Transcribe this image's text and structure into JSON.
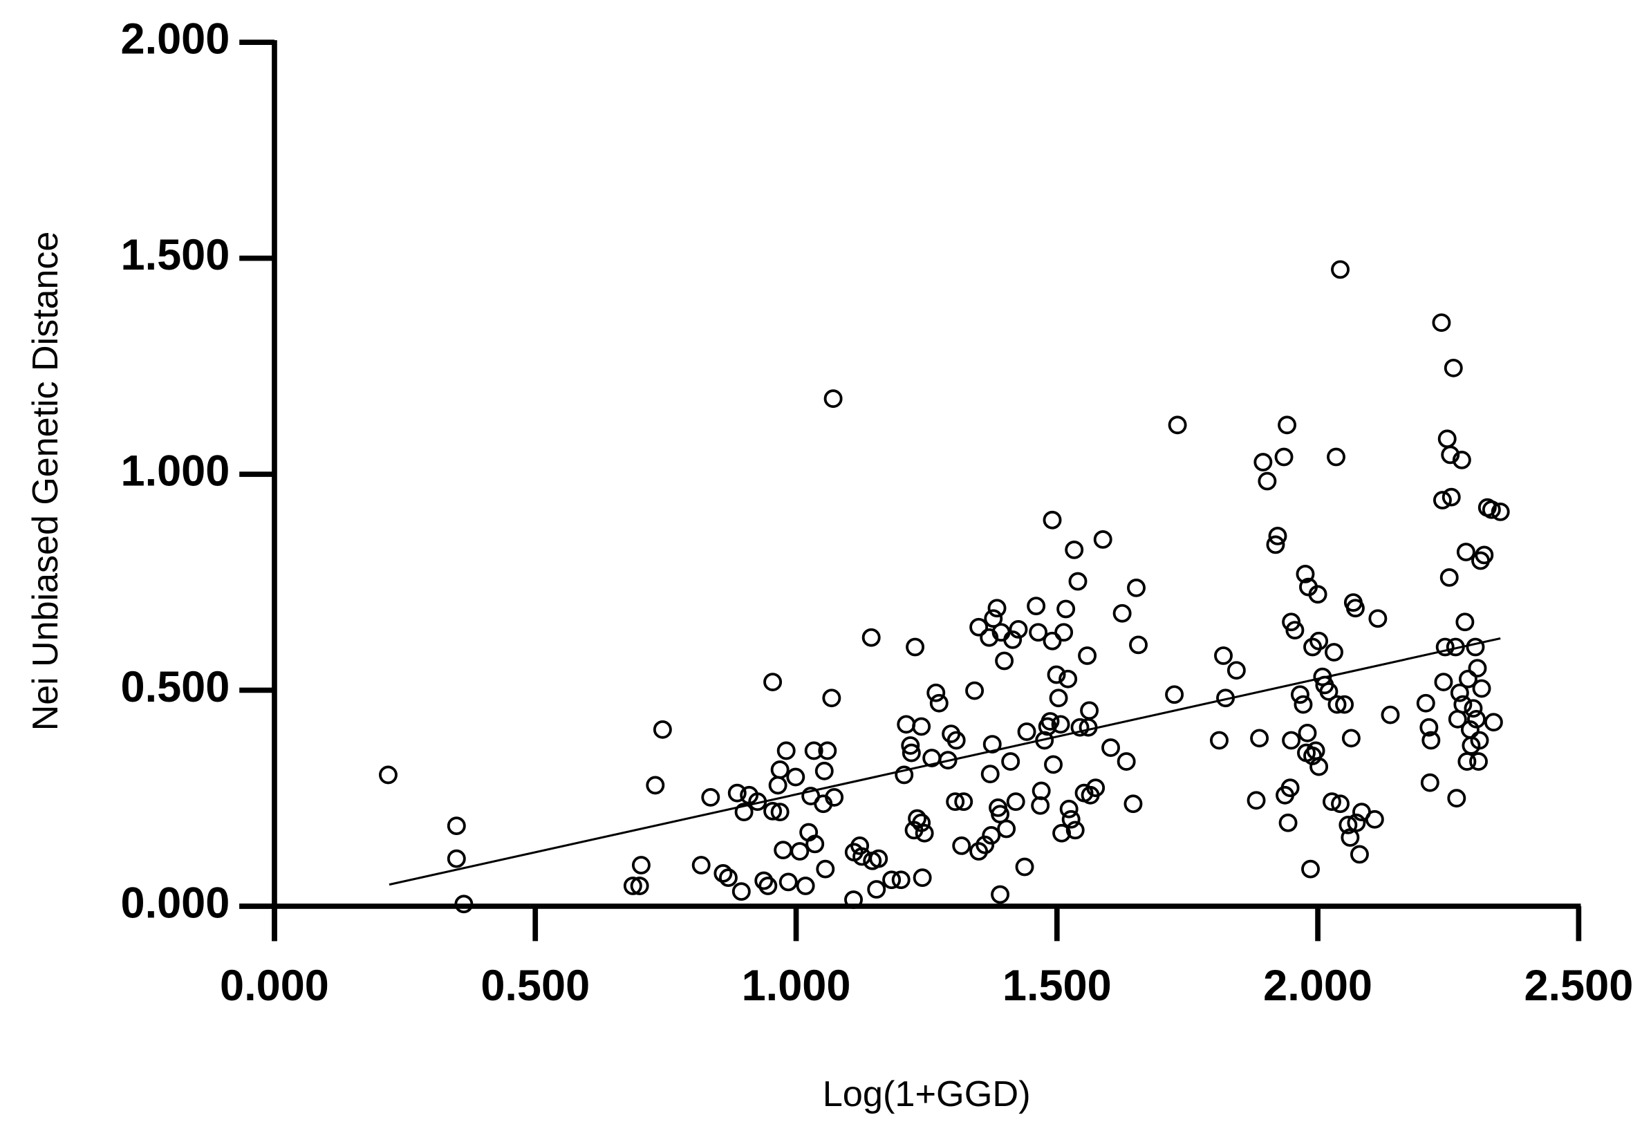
{
  "chart_data": {
    "type": "scatter",
    "x_label": "Log(1+GGD)",
    "y_label": "Nei Unbiased Genetic Distance",
    "xlim": [
      0,
      2.5
    ],
    "ylim": [
      0,
      2
    ],
    "xticks": [
      {
        "value": 0,
        "label": "0.000"
      },
      {
        "value": 0.5,
        "label": "0.500"
      },
      {
        "value": 1,
        "label": "1.000"
      },
      {
        "value": 1.5,
        "label": "1.500"
      },
      {
        "value": 2,
        "label": "2.000"
      },
      {
        "value": 2.5,
        "label": "2.500"
      }
    ],
    "yticks": [
      {
        "value": 0,
        "label": "0.000"
      },
      {
        "value": 0.5,
        "label": "0.500"
      },
      {
        "value": 1,
        "label": "1.000"
      },
      {
        "value": 1.5,
        "label": "1.500"
      },
      {
        "value": 2,
        "label": "2.000"
      }
    ],
    "color": "#000000",
    "x": [
      0.218,
      0.349,
      0.349,
      0.363,
      0.687,
      0.7,
      0.703,
      0.744,
      0.73,
      0.818,
      0.836,
      0.86,
      0.87,
      0.895,
      0.887,
      0.9,
      0.91,
      0.926,
      0.938,
      0.946,
      0.955,
      0.955,
      0.965,
      0.969,
      0.969,
      0.975,
      0.981,
      0.985,
      0.999,
      1.007,
      1.018,
      1.028,
      1.024,
      1.034,
      1.036,
      1.056,
      1.06,
      1.054,
      1.052,
      1.068,
      1.073,
      1.071,
      1.11,
      1.111,
      1.122,
      1.126,
      1.144,
      1.146,
      1.154,
      1.158,
      1.183,
      1.201,
      1.207,
      1.211,
      1.219,
      1.221,
      1.228,
      1.232,
      1.226,
      1.24,
      1.242,
      1.24,
      1.246,
      1.26,
      1.268,
      1.274,
      1.291,
      1.297,
      1.307,
      1.305,
      1.321,
      1.317,
      1.342,
      1.35,
      1.35,
      1.362,
      1.37,
      1.372,
      1.374,
      1.376,
      1.378,
      1.385,
      1.387,
      1.391,
      1.391,
      1.393,
      1.399,
      1.403,
      1.411,
      1.415,
      1.426,
      1.421,
      1.438,
      1.442,
      1.46,
      1.464,
      1.468,
      1.47,
      1.476,
      1.482,
      1.487,
      1.491,
      1.491,
      1.493,
      1.499,
      1.503,
      1.507,
      1.509,
      1.513,
      1.517,
      1.521,
      1.523,
      1.527,
      1.533,
      1.535,
      1.54,
      1.544,
      1.552,
      1.558,
      1.56,
      1.562,
      1.564,
      1.574,
      1.588,
      1.603,
      1.625,
      1.633,
      1.646,
      1.652,
      1.656,
      1.725,
      1.731,
      1.811,
      1.819,
      1.823,
      1.844,
      1.882,
      1.888,
      1.895,
      1.903,
      1.919,
      1.923,
      1.935,
      1.941,
      1.937,
      1.943,
      1.947,
      1.949,
      1.949,
      1.956,
      1.966,
      1.972,
      1.976,
      1.978,
      1.98,
      1.982,
      1.986,
      1.99,
      1.99,
      1.996,
      2.0,
      2.002,
      2.002,
      2.009,
      2.013,
      2.021,
      2.027,
      2.031,
      2.035,
      2.037,
      2.043,
      2.043,
      2.051,
      2.058,
      2.062,
      2.064,
      2.068,
      2.072,
      2.074,
      2.08,
      2.084,
      2.109,
      2.115,
      2.139,
      2.207,
      2.213,
      2.215,
      2.217,
      2.237,
      2.239,
      2.241,
      2.244,
      2.248,
      2.252,
      2.256,
      2.26,
      2.264,
      2.266,
      2.268,
      2.272,
      2.276,
      2.278,
      2.282,
      2.284,
      2.286,
      2.288,
      2.292,
      2.294,
      2.298,
      2.302,
      2.304,
      2.306,
      2.308,
      2.31,
      2.312,
      2.314,
      2.254,
      2.319,
      2.325,
      2.333,
      2.337,
      2.35
    ],
    "values": [
      0.304,
      0.186,
      0.11,
      0.005,
      0.047,
      0.047,
      0.095,
      0.409,
      0.28,
      0.095,
      0.252,
      0.076,
      0.066,
      0.034,
      0.262,
      0.218,
      0.257,
      0.242,
      0.059,
      0.047,
      0.519,
      0.22,
      0.28,
      0.218,
      0.316,
      0.13,
      0.36,
      0.056,
      0.299,
      0.127,
      0.047,
      0.255,
      0.171,
      0.36,
      0.144,
      0.086,
      0.36,
      0.313,
      0.237,
      0.482,
      0.252,
      1.175,
      0.015,
      0.125,
      0.14,
      0.115,
      0.622,
      0.105,
      0.039,
      0.11,
      0.061,
      0.061,
      0.304,
      0.421,
      0.372,
      0.355,
      0.6,
      0.203,
      0.176,
      0.416,
      0.066,
      0.193,
      0.169,
      0.343,
      0.494,
      0.47,
      0.338,
      0.399,
      0.384,
      0.242,
      0.242,
      0.14,
      0.499,
      0.646,
      0.127,
      0.142,
      0.622,
      0.306,
      0.164,
      0.375,
      0.666,
      0.69,
      0.228,
      0.213,
      0.027,
      0.634,
      0.568,
      0.179,
      0.335,
      0.617,
      0.641,
      0.242,
      0.091,
      0.404,
      0.695,
      0.634,
      0.233,
      0.267,
      0.384,
      0.416,
      0.428,
      0.894,
      0.614,
      0.328,
      0.536,
      0.482,
      0.421,
      0.169,
      0.634,
      0.688,
      0.526,
      0.225,
      0.201,
      0.825,
      0.176,
      0.752,
      0.414,
      0.262,
      0.58,
      0.414,
      0.453,
      0.257,
      0.274,
      0.849,
      0.367,
      0.678,
      0.335,
      0.237,
      0.737,
      0.605,
      0.49,
      1.114,
      0.384,
      0.58,
      0.482,
      0.546,
      0.245,
      0.389,
      1.028,
      0.984,
      0.837,
      0.857,
      1.04,
      1.114,
      0.257,
      0.193,
      0.274,
      0.384,
      0.658,
      0.639,
      0.49,
      0.467,
      0.769,
      0.355,
      0.401,
      0.739,
      0.086,
      0.6,
      0.348,
      0.36,
      0.722,
      0.614,
      0.323,
      0.531,
      0.512,
      0.497,
      0.242,
      0.588,
      1.04,
      0.467,
      1.474,
      0.237,
      0.467,
      0.188,
      0.159,
      0.389,
      0.703,
      0.69,
      0.193,
      0.12,
      0.218,
      0.201,
      0.666,
      0.443,
      0.47,
      0.414,
      0.286,
      0.384,
      1.351,
      0.94,
      0.519,
      0.6,
      1.082,
      0.761,
      0.947,
      1.246,
      0.6,
      0.25,
      0.433,
      0.494,
      1.033,
      0.467,
      0.658,
      0.82,
      0.335,
      0.526,
      0.409,
      0.372,
      0.458,
      0.6,
      0.433,
      0.551,
      0.335,
      0.384,
      0.8,
      0.504,
      1.045,
      0.813,
      0.923,
      0.918,
      0.426,
      0.913
    ],
    "trendline": {
      "x": [
        0.22,
        2.35
      ],
      "y": [
        0.05,
        0.62
      ]
    }
  }
}
